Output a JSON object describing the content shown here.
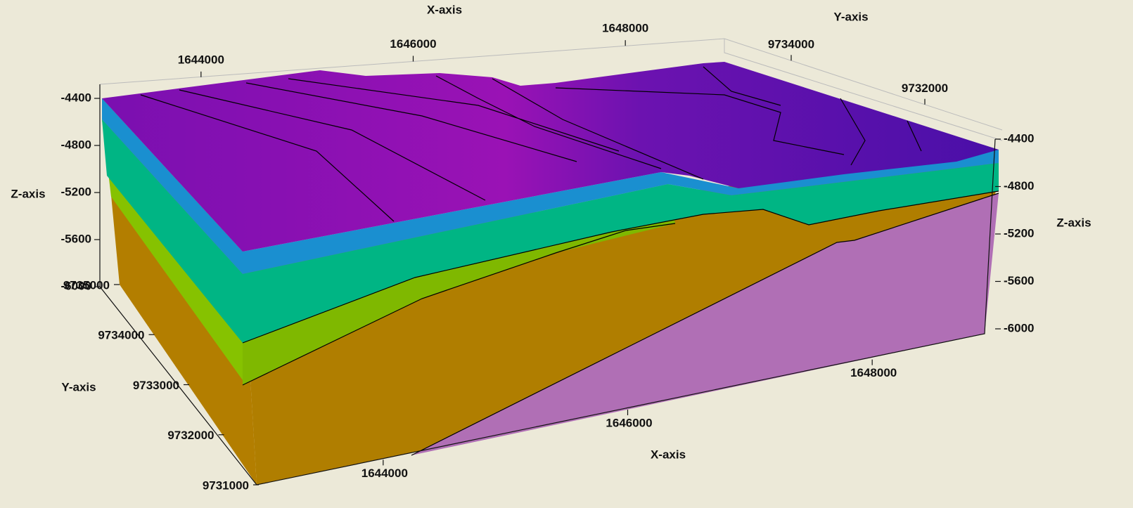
{
  "chart_data": {
    "type": "block3d",
    "axes": [
      {
        "label": "X-axis",
        "lim": [
          1643000,
          1649000
        ],
        "ticks": [
          1644000,
          1646000,
          1648000
        ]
      },
      {
        "label": "X-axis",
        "lim": [
          1643000,
          1649000
        ],
        "ticks": [
          1644000,
          1646000,
          1648000
        ]
      },
      {
        "label": "Y-axis",
        "lim": [
          9731000,
          9735000
        ],
        "ticks": [
          9731000,
          9732000,
          9733000,
          9734000,
          9735000
        ]
      },
      {
        "label": "Y-axis",
        "lim": [
          9735000,
          9731000
        ],
        "ticks": [
          9734000,
          9732000
        ]
      },
      {
        "label": "Z-axis",
        "lim": [
          -6000,
          -4400
        ],
        "ticks": [
          -6000,
          -5600,
          -5200,
          -4800,
          -4400
        ]
      },
      {
        "label": "Z-axis",
        "lim": [
          -6000,
          -4400
        ],
        "ticks": [
          -6000,
          -5600,
          -5200,
          -4800,
          -4400
        ]
      }
    ]
  }
}
